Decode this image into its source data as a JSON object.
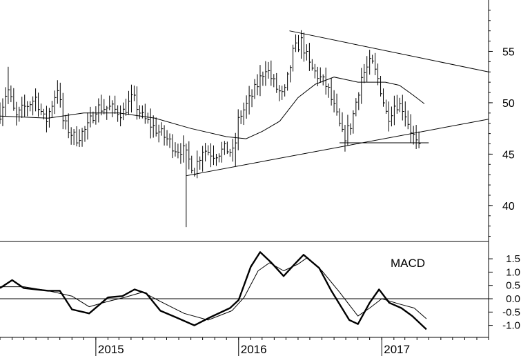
{
  "chart_data": [
    {
      "type": "bar",
      "subtype": "ohlc-weekly",
      "title": "",
      "xlabel": "",
      "ylabel": "",
      "ylim": [
        36.5,
        60
      ],
      "x_range": [
        "2014-05",
        "2017-10"
      ],
      "grid": false,
      "y_ticks": [
        {
          "value": 55,
          "label": "55"
        },
        {
          "value": 50,
          "label": "50"
        },
        {
          "value": 45,
          "label": "45"
        },
        {
          "value": 40,
          "label": "40"
        }
      ],
      "x_ticks": [
        {
          "date": "2015-01-01",
          "label": "2015"
        },
        {
          "date": "2016-01-01",
          "label": "2016"
        },
        {
          "date": "2017-01-01",
          "label": "2017"
        }
      ],
      "series": [
        {
          "kind": "price",
          "anchors": [
            [
              "2014-05-01",
              49.0
            ],
            [
              "2014-05-20",
              51.5
            ],
            [
              "2014-06-10",
              48.5
            ],
            [
              "2014-07-01",
              49.5
            ],
            [
              "2014-08-01",
              50.5
            ],
            [
              "2014-08-25",
              48.0
            ],
            [
              "2014-09-25",
              51.5
            ],
            [
              "2014-10-10",
              48.0
            ],
            [
              "2014-11-10",
              46.5
            ],
            [
              "2014-12-10",
              47.5
            ],
            [
              "2015-01-01",
              49.5
            ],
            [
              "2015-02-05",
              49.5
            ],
            [
              "2015-03-10",
              49.0
            ],
            [
              "2015-04-05",
              50.5
            ],
            [
              "2015-05-01",
              48.5
            ],
            [
              "2015-06-01",
              47.5
            ],
            [
              "2015-07-01",
              46.5
            ],
            [
              "2015-07-25",
              45.5
            ],
            [
              "2015-08-10",
              45.5
            ],
            [
              "2015-09-10",
              43.5
            ],
            [
              "2015-10-01",
              45.5
            ],
            [
              "2015-10-30",
              45.0
            ],
            [
              "2015-12-01",
              45.5
            ],
            [
              "2015-12-20",
              45.0
            ],
            [
              "2016-01-01",
              48.5
            ],
            [
              "2016-01-25",
              50.0
            ],
            [
              "2016-02-15",
              51.5
            ],
            [
              "2016-03-10",
              53.5
            ],
            [
              "2016-04-05",
              51.5
            ],
            [
              "2016-04-25",
              50.5
            ],
            [
              "2016-05-20",
              55.0
            ],
            [
              "2016-06-10",
              56.0
            ],
            [
              "2016-07-01",
              53.5
            ],
            [
              "2016-07-25",
              52.5
            ],
            [
              "2016-08-15",
              51.5
            ],
            [
              "2016-09-05",
              49.0
            ],
            [
              "2016-09-25",
              46.5
            ],
            [
              "2016-10-15",
              48.0
            ],
            [
              "2016-11-10",
              52.5
            ],
            [
              "2016-12-05",
              54.0
            ],
            [
              "2016-12-25",
              52.0
            ],
            [
              "2017-01-15",
              48.5
            ],
            [
              "2017-02-05",
              50.0
            ],
            [
              "2017-02-25",
              49.5
            ],
            [
              "2017-03-10",
              48.0
            ],
            [
              "2017-03-30",
              46.0
            ],
            [
              "2017-04-12",
              45.0
            ]
          ],
          "spikes": [
            {
              "date": "2014-05-20",
              "high": 53.5
            },
            {
              "date": "2015-08-20",
              "low": 37.9
            },
            {
              "date": "2015-12-25",
              "low": 43.8
            },
            {
              "date": "2017-04-15",
              "low": 44.5
            }
          ]
        },
        {
          "kind": "moving-average",
          "values": [
            [
              "2014-05-01",
              48.7
            ],
            [
              "2014-09-01",
              48.5
            ],
            [
              "2014-12-01",
              49.0
            ],
            [
              "2015-03-01",
              49.0
            ],
            [
              "2015-06-01",
              48.5
            ],
            [
              "2015-09-01",
              47.5
            ],
            [
              "2015-12-01",
              46.7
            ],
            [
              "2016-01-20",
              46.5
            ],
            [
              "2016-03-01",
              47.2
            ],
            [
              "2016-04-15",
              48.2
            ],
            [
              "2016-06-01",
              50.5
            ],
            [
              "2016-07-15",
              51.8
            ],
            [
              "2016-09-01",
              52.5
            ],
            [
              "2016-11-01",
              52.0
            ],
            [
              "2017-01-10",
              52.0
            ],
            [
              "2017-02-15",
              51.7
            ],
            [
              "2017-03-20",
              50.8
            ],
            [
              "2017-04-20",
              49.9
            ]
          ]
        }
      ],
      "trendlines": [
        {
          "from": [
            "2016-05-10",
            57.0
          ],
          "to": [
            "2017-10-01",
            53.0
          ]
        },
        {
          "from": [
            "2015-08-20",
            42.9
          ],
          "to": [
            "2017-10-01",
            48.4
          ]
        },
        {
          "from": [
            "2016-09-15",
            46.1
          ],
          "to": [
            "2017-05-01",
            46.1
          ]
        }
      ]
    },
    {
      "type": "line",
      "title": "MACD",
      "xlabel": "",
      "ylabel": "",
      "ylim": [
        -1.45,
        2.15
      ],
      "grid": false,
      "y_ticks": [
        "1.5",
        "1.0",
        "0.5",
        "0.0",
        "-0.5",
        "-1.0"
      ],
      "zero_line": 0.0,
      "series": [
        {
          "kind": "macd",
          "values": [
            [
              "2014-05-01",
              0.4
            ],
            [
              "2014-06-01",
              0.7
            ],
            [
              "2014-07-01",
              0.4
            ],
            [
              "2014-09-01",
              0.3
            ],
            [
              "2014-10-01",
              0.3
            ],
            [
              "2014-11-01",
              -0.4
            ],
            [
              "2014-12-15",
              -0.55
            ],
            [
              "2015-02-01",
              0.05
            ],
            [
              "2015-03-10",
              0.1
            ],
            [
              "2015-04-10",
              0.35
            ],
            [
              "2015-05-10",
              0.2
            ],
            [
              "2015-06-15",
              -0.45
            ],
            [
              "2015-07-25",
              -0.7
            ],
            [
              "2015-09-10",
              -1.0
            ],
            [
              "2015-10-20",
              -0.7
            ],
            [
              "2015-12-10",
              -0.35
            ],
            [
              "2016-01-01",
              -0.05
            ],
            [
              "2016-02-01",
              1.2
            ],
            [
              "2016-02-25",
              1.75
            ],
            [
              "2016-03-25",
              1.35
            ],
            [
              "2016-04-25",
              0.85
            ],
            [
              "2016-05-20",
              1.25
            ],
            [
              "2016-06-15",
              1.65
            ],
            [
              "2016-07-25",
              1.15
            ],
            [
              "2016-08-25",
              0.3
            ],
            [
              "2016-10-10",
              -0.8
            ],
            [
              "2016-11-01",
              -0.95
            ],
            [
              "2016-12-01",
              -0.15
            ],
            [
              "2016-12-25",
              0.35
            ],
            [
              "2017-01-20",
              -0.15
            ],
            [
              "2017-02-20",
              -0.35
            ],
            [
              "2017-03-20",
              -0.65
            ],
            [
              "2017-04-25",
              -1.15
            ]
          ]
        },
        {
          "kind": "signal",
          "values": [
            [
              "2014-05-01",
              0.45
            ],
            [
              "2014-07-01",
              0.45
            ],
            [
              "2014-09-01",
              0.3
            ],
            [
              "2014-11-01",
              0.1
            ],
            [
              "2014-12-15",
              -0.3
            ],
            [
              "2015-02-01",
              -0.1
            ],
            [
              "2015-03-15",
              0.05
            ],
            [
              "2015-05-01",
              0.25
            ],
            [
              "2015-06-15",
              -0.1
            ],
            [
              "2015-08-15",
              -0.55
            ],
            [
              "2015-10-15",
              -0.8
            ],
            [
              "2015-12-15",
              -0.45
            ],
            [
              "2016-01-15",
              0.05
            ],
            [
              "2016-02-20",
              1.05
            ],
            [
              "2016-03-20",
              1.35
            ],
            [
              "2016-04-25",
              1.05
            ],
            [
              "2016-06-01",
              1.3
            ],
            [
              "2016-06-25",
              1.55
            ],
            [
              "2016-08-01",
              1.05
            ],
            [
              "2016-09-15",
              0.25
            ],
            [
              "2016-11-01",
              -0.65
            ],
            [
              "2016-12-01",
              -0.35
            ],
            [
              "2017-01-01",
              0.0
            ],
            [
              "2017-02-15",
              -0.2
            ],
            [
              "2017-03-25",
              -0.35
            ],
            [
              "2017-04-25",
              -0.75
            ]
          ]
        }
      ]
    }
  ]
}
